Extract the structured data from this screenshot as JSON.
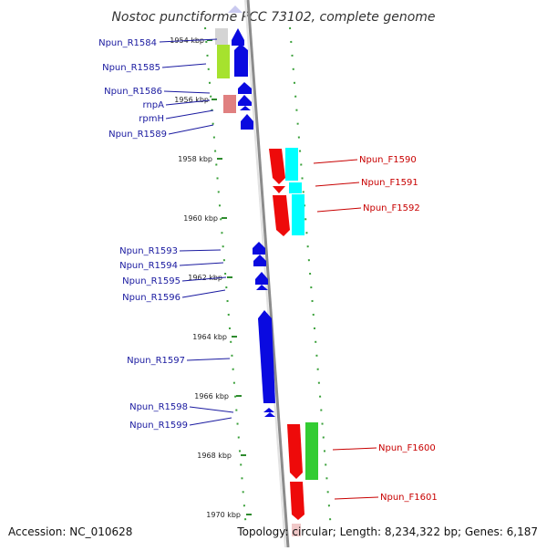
{
  "title": "Nostoc punctiforme PCC 73102, complete genome",
  "footer": {
    "accession": "Accession: NC_010628",
    "topology": "Topology: circular; Length: 8,234,322 bp; Genes: 6,187"
  },
  "colors": {
    "reverse_label": "#1a1aa0",
    "forward_label": "#c80000",
    "backbone": "#8c8c8c",
    "tick": "#2e8b2e",
    "dot": "#3aa03a"
  },
  "kbp_labels": [
    "1954 kbp",
    "1956 kbp",
    "1958 kbp",
    "1960 kbp",
    "1962 kbp",
    "1964 kbp",
    "1966 kbp",
    "1968 kbp",
    "1970 kbp"
  ],
  "reverse_labels": [
    "Npun_R1584",
    "Npun_R1585",
    "Npun_R1586",
    "rnpA",
    "rpmH",
    "Npun_R1589",
    "Npun_R1593",
    "Npun_R1594",
    "Npun_R1595",
    "Npun_R1596",
    "Npun_R1597",
    "Npun_R1598",
    "Npun_R1599"
  ],
  "forward_labels": [
    "Npun_F1590",
    "Npun_F1591",
    "Npun_F1592",
    "Npun_F1600",
    "Npun_F1601"
  ]
}
